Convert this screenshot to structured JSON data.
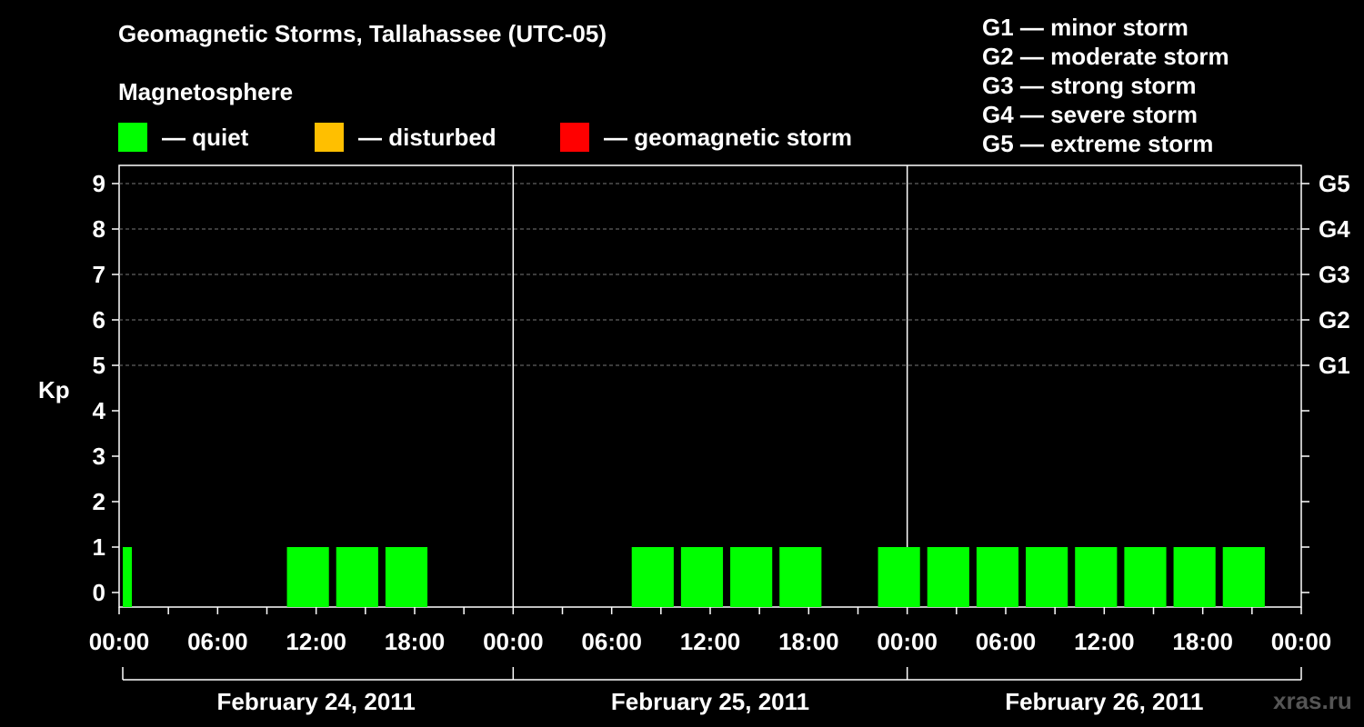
{
  "title": "Geomagnetic Storms, Tallahassee (UTC-05)",
  "subtitle": "Magnetosphere",
  "legend": [
    {
      "label": "— quiet",
      "color": "#00ff00"
    },
    {
      "label": "— disturbed",
      "color": "#ffbf00"
    },
    {
      "label": "— geomagnetic storm",
      "color": "#ff0000"
    }
  ],
  "storm_levels": [
    "G1 — minor storm",
    "G2 — moderate storm",
    "G3 — strong storm",
    "G4 — severe storm",
    "G5 — extreme storm"
  ],
  "watermark": "xras.ru",
  "chart_data": {
    "type": "bar",
    "ylabel": "Kp",
    "ylim": [
      0,
      9
    ],
    "yticks": [
      "0",
      "1",
      "2",
      "3",
      "4",
      "5",
      "6",
      "7",
      "8",
      "9"
    ],
    "right_axis": [
      {
        "value": 5,
        "label": "G1"
      },
      {
        "value": 6,
        "label": "G2"
      },
      {
        "value": 7,
        "label": "G3"
      },
      {
        "value": 8,
        "label": "G4"
      },
      {
        "value": 9,
        "label": "G5"
      }
    ],
    "grid": "dashed horizontal at Kp 5-9",
    "xtick_labels": [
      "00:00",
      "06:00",
      "12:00",
      "18:00",
      "00:00",
      "06:00",
      "12:00",
      "18:00",
      "00:00",
      "06:00",
      "12:00",
      "18:00",
      "00:00"
    ],
    "days": [
      "February 24, 2011",
      "February 25, 2011",
      "February 26, 2011"
    ],
    "bar_color": "#00ff00",
    "series": [
      {
        "values": [
          {
            "day": 0,
            "start_hour": 0,
            "end_hour": 1,
            "kp": 1
          },
          {
            "day": 0,
            "start_hour": 10,
            "end_hour": 13,
            "kp": 1
          },
          {
            "day": 0,
            "start_hour": 13,
            "end_hour": 16,
            "kp": 1
          },
          {
            "day": 0,
            "start_hour": 16,
            "end_hour": 19,
            "kp": 1
          },
          {
            "day": 1,
            "start_hour": 7,
            "end_hour": 10,
            "kp": 1
          },
          {
            "day": 1,
            "start_hour": 10,
            "end_hour": 13,
            "kp": 1
          },
          {
            "day": 1,
            "start_hour": 13,
            "end_hour": 16,
            "kp": 1
          },
          {
            "day": 1,
            "start_hour": 16,
            "end_hour": 19,
            "kp": 1
          },
          {
            "day": 1,
            "start_hour": 22,
            "end_hour": 25,
            "kp": 1
          },
          {
            "day": 2,
            "start_hour": 1,
            "end_hour": 4,
            "kp": 1
          },
          {
            "day": 2,
            "start_hour": 4,
            "end_hour": 7,
            "kp": 1
          },
          {
            "day": 2,
            "start_hour": 7,
            "end_hour": 10,
            "kp": 1
          },
          {
            "day": 2,
            "start_hour": 10,
            "end_hour": 13,
            "kp": 1
          },
          {
            "day": 2,
            "start_hour": 13,
            "end_hour": 16,
            "kp": 1
          },
          {
            "day": 2,
            "start_hour": 16,
            "end_hour": 19,
            "kp": 1
          },
          {
            "day": 2,
            "start_hour": 19,
            "end_hour": 22,
            "kp": 1
          }
        ]
      }
    ]
  }
}
